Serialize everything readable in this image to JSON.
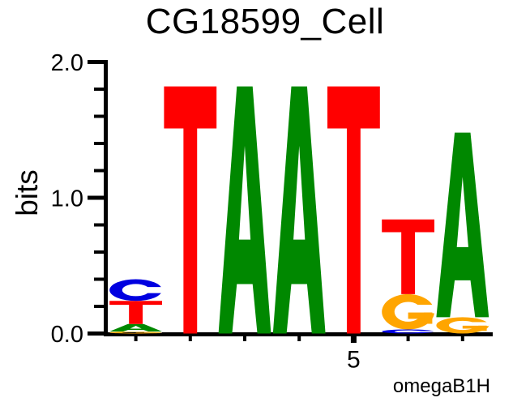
{
  "title": "CG18599_Cell",
  "y_axis": {
    "label": "bits"
  },
  "caption": "omegaB1H",
  "colors": {
    "A": "#008800",
    "C": "#0000E0",
    "G": "#FFA500",
    "T": "#FF0000",
    "axis": "#000000",
    "background": "#FFFFFF"
  },
  "chart_data": {
    "type": "sequence_logo",
    "title": "CG18599_Cell",
    "ylabel": "bits",
    "ylim": [
      0,
      2.0
    ],
    "yticks": [
      {
        "value": 0.0,
        "label": "0.0"
      },
      {
        "value": 1.0,
        "label": "1.0"
      },
      {
        "value": 2.0,
        "label": "2.0"
      }
    ],
    "y_minor_tick_step": 0.2,
    "num_positions": 7,
    "x_major_tick": {
      "position": 5,
      "label": "5"
    },
    "annotation": "omegaB1H",
    "positions": [
      {
        "position": 1,
        "stack_bottom_to_top": [
          {
            "base": "G",
            "bits": 0.015
          },
          {
            "base": "A",
            "bits": 0.055
          },
          {
            "base": "T",
            "bits": 0.17
          },
          {
            "base": "C",
            "bits": 0.16
          }
        ]
      },
      {
        "position": 2,
        "stack_bottom_to_top": [
          {
            "base": "T",
            "bits": 1.82
          }
        ]
      },
      {
        "position": 3,
        "stack_bottom_to_top": [
          {
            "base": "A",
            "bits": 1.82
          }
        ]
      },
      {
        "position": 4,
        "stack_bottom_to_top": [
          {
            "base": "A",
            "bits": 1.82
          }
        ]
      },
      {
        "position": 5,
        "stack_bottom_to_top": [
          {
            "base": "T",
            "bits": 1.82
          }
        ]
      },
      {
        "position": 6,
        "stack_bottom_to_top": [
          {
            "base": "C",
            "bits": 0.03
          },
          {
            "base": "G",
            "bits": 0.26
          },
          {
            "base": "T",
            "bits": 0.55
          }
        ]
      },
      {
        "position": 7,
        "stack_bottom_to_top": [
          {
            "base": "G",
            "bits": 0.12
          },
          {
            "base": "A",
            "bits": 1.36
          }
        ]
      }
    ]
  }
}
